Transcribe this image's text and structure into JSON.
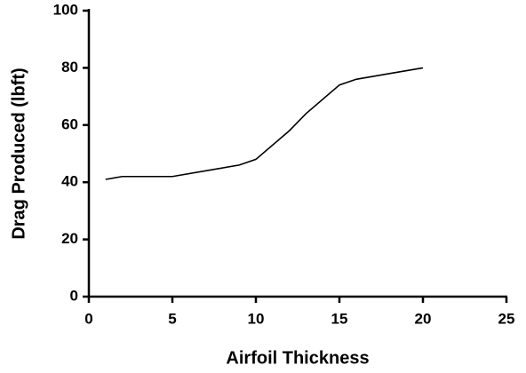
{
  "chart_data": {
    "type": "line",
    "x_label": "Airfoil Thickness",
    "y_label": "Drag Produced (lbft)",
    "x": [
      1,
      2,
      5,
      7,
      9,
      10,
      12,
      13,
      15,
      16,
      18,
      20
    ],
    "series": [
      {
        "color": "#000000",
        "values": [
          41,
          42,
          42,
          44,
          46,
          48,
          58,
          64,
          74,
          76,
          78,
          80
        ]
      }
    ],
    "xlim": [
      0,
      25
    ],
    "xticks": [
      0,
      5,
      10,
      15,
      20,
      25
    ],
    "ylim": [
      0,
      100
    ],
    "yticks": [
      0,
      20,
      40,
      60,
      80,
      100
    ],
    "grid": false
  }
}
